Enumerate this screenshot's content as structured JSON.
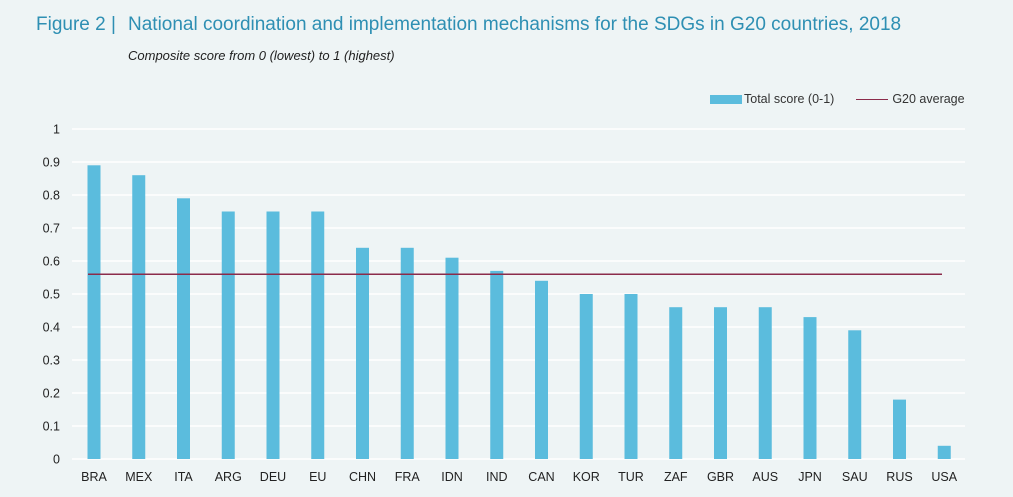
{
  "header": {
    "figure_label": "Figure 2 |",
    "title": "National coordination and implementation mechanisms for the SDGs in G20 countries, 2018",
    "subtitle": "Composite score from 0 (lowest) to 1 (highest)"
  },
  "colors": {
    "bar": "#5bbcdd",
    "average_line": "#8b2b4a",
    "grid": "#ffffff",
    "title": "#2e8fb3"
  },
  "chart_data": {
    "type": "bar",
    "title": "National coordination and implementation mechanisms for the SDGs in G20 countries, 2018",
    "subtitle": "Composite score from 0 (lowest) to 1 (highest)",
    "xlabel": "",
    "ylabel": "",
    "ylim": [
      0,
      1
    ],
    "yticks": [
      "0",
      "0.1",
      "0.2",
      "0.3",
      "0.4",
      "0.5",
      "0.6",
      "0.7",
      "0.8",
      "0.9",
      "1"
    ],
    "grid": true,
    "legend_position": "top-right",
    "categories": [
      "BRA",
      "MEX",
      "ITA",
      "ARG",
      "DEU",
      "EU",
      "CHN",
      "FRA",
      "IDN",
      "IND",
      "CAN",
      "KOR",
      "TUR",
      "ZAF",
      "GBR",
      "AUS",
      "JPN",
      "SAU",
      "RUS",
      "USA"
    ],
    "series": [
      {
        "name": "Total score (0-1)",
        "type": "bar",
        "values": [
          0.89,
          0.86,
          0.79,
          0.75,
          0.75,
          0.75,
          0.64,
          0.64,
          0.61,
          0.57,
          0.54,
          0.5,
          0.5,
          0.46,
          0.46,
          0.46,
          0.43,
          0.39,
          0.18,
          0.04
        ]
      },
      {
        "name": "G20 average",
        "type": "line",
        "value": 0.56
      }
    ]
  }
}
